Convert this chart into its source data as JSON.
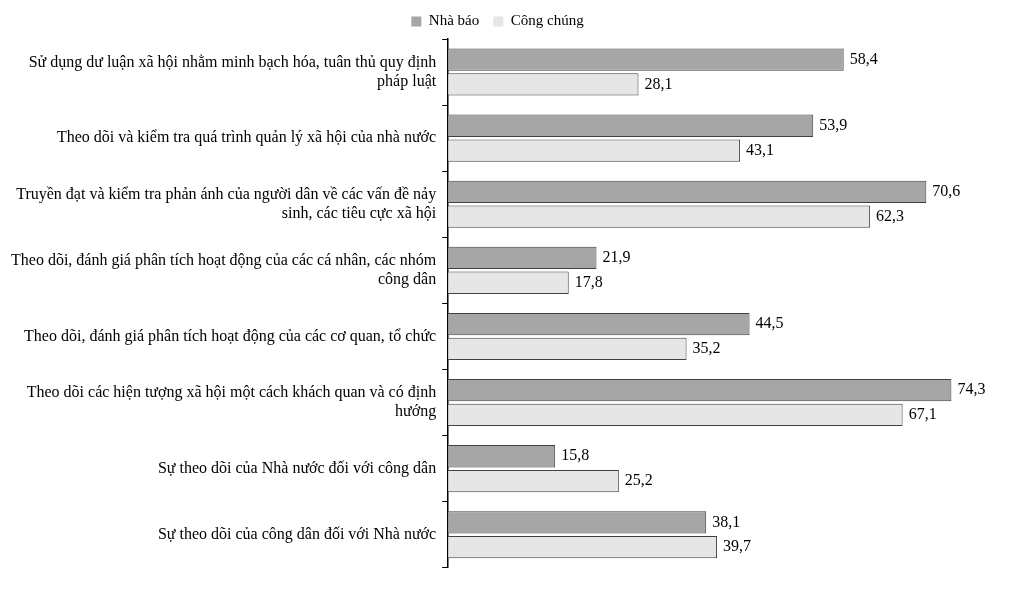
{
  "chart_data": {
    "type": "bar",
    "orientation": "horizontal",
    "legend": "top",
    "categories": [
      "Sử dụng dư luận xã hội nhằm minh bạch hóa, tuân thủ quy định pháp luật",
      "Theo dõi và kiểm tra quá trình quản lý xã hội của nhà nước",
      "Truyền đạt và kiểm tra phản ánh của người dân về các vấn đề nảy sinh, các tiêu cực xã hội",
      "Theo dõi, đánh giá phân tích hoạt động của các cá nhân, các nhóm công dân",
      "Theo dõi, đánh giá phân tích hoạt động của các cơ quan, tổ chức",
      "Theo dõi các hiện tượng xã hội một cách khách quan và có định hướng",
      "Sự theo dõi của Nhà nước đối với công dân",
      "Sự theo dõi của công dân đối với Nhà nước"
    ],
    "series": [
      {
        "name": "Nhà báo",
        "color": "#a6a6a6",
        "values": [
          58.4,
          53.9,
          70.6,
          21.9,
          44.5,
          74.3,
          15.8,
          38.1
        ],
        "value_labels": [
          "58,4",
          "53,9",
          "70,6",
          "21,9",
          "44,5",
          "74,3",
          "15,8",
          "38,1"
        ]
      },
      {
        "name": "Công chúng",
        "color": "#e6e6e6",
        "values": [
          28.1,
          43.1,
          62.3,
          17.8,
          35.2,
          67.1,
          25.2,
          39.7
        ],
        "value_labels": [
          "28,1",
          "43,1",
          "62,3",
          "17,8",
          "35,2",
          "67,1",
          "25,2",
          "39,7"
        ]
      }
    ]
  }
}
